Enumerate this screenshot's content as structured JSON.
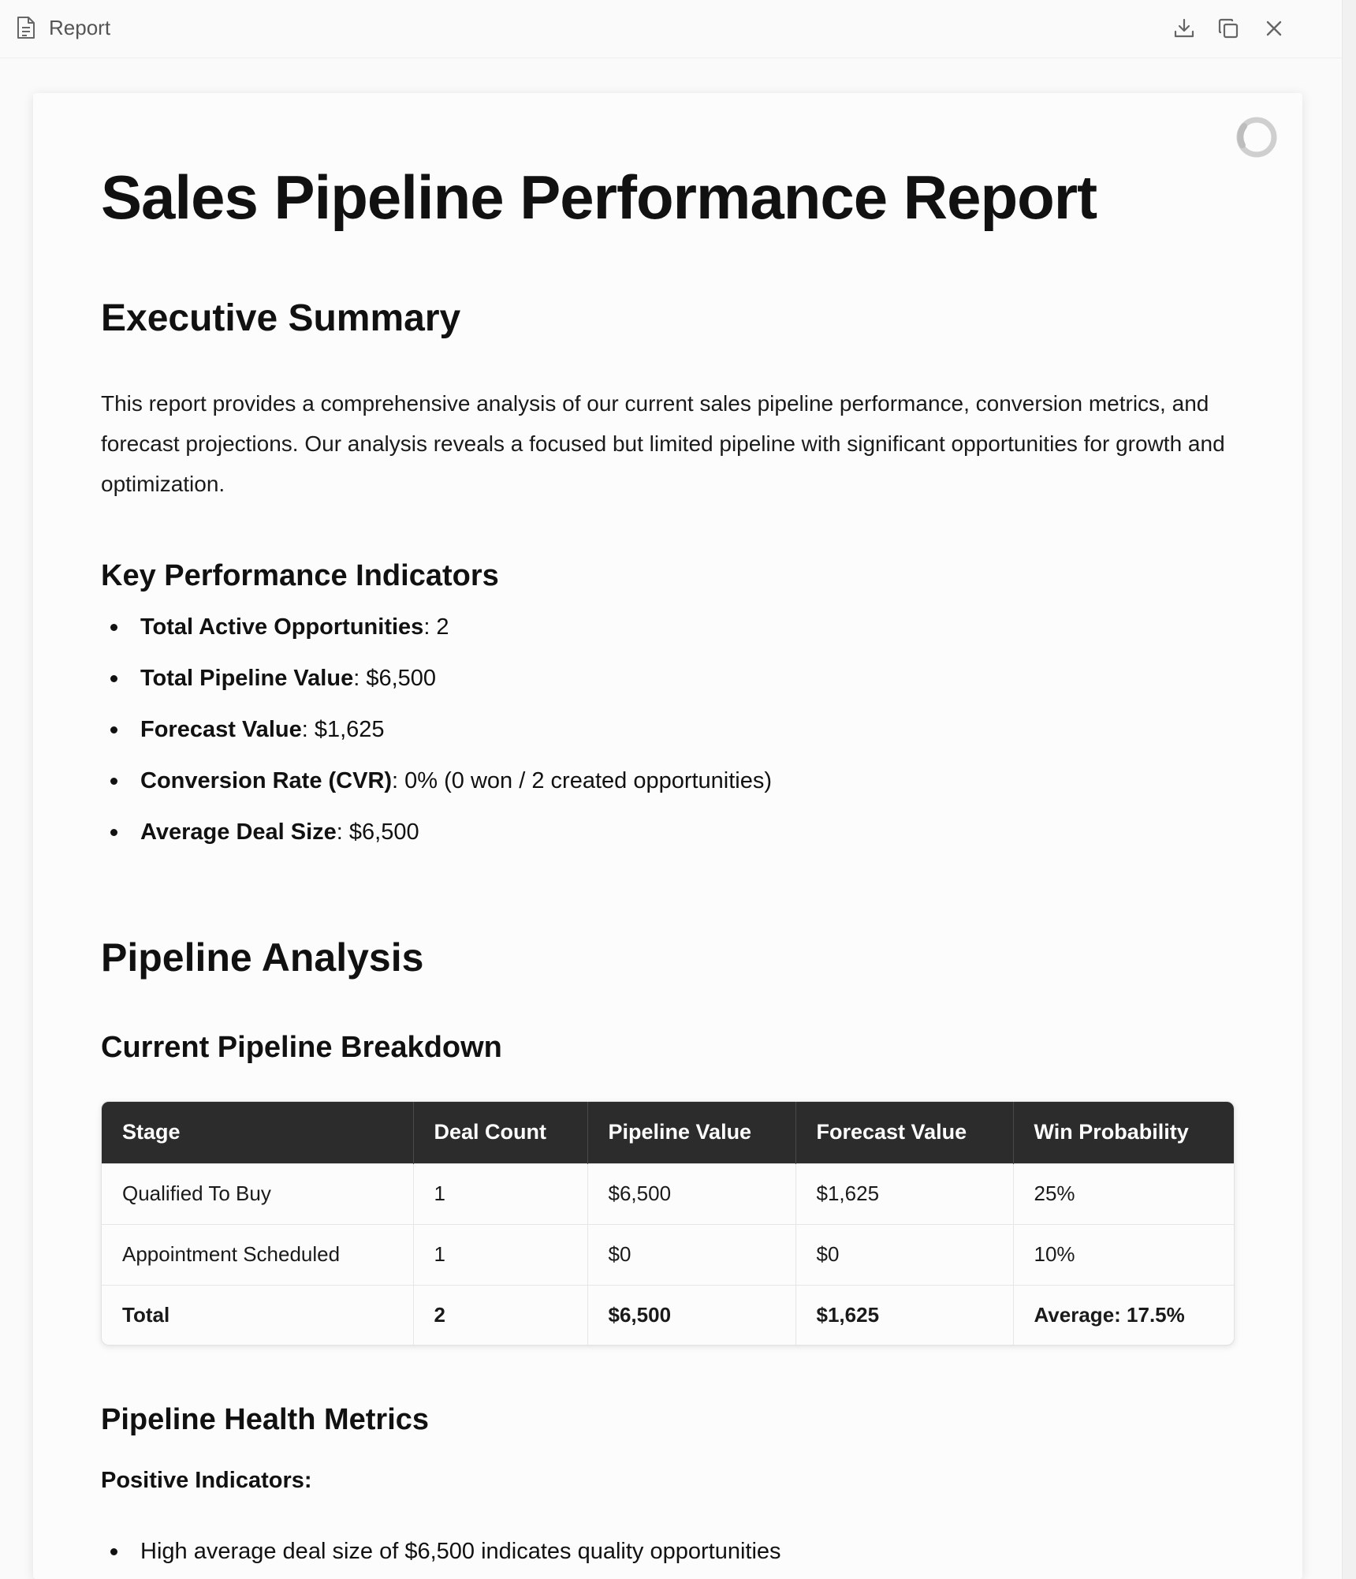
{
  "window": {
    "title": "Report",
    "icons": [
      "document-icon",
      "download-icon",
      "copy-icon",
      "close-icon",
      "loading-spinner-icon"
    ]
  },
  "report": {
    "title": "Sales Pipeline Performance Report",
    "executive_summary": {
      "heading": "Executive Summary",
      "paragraph": "This report provides a comprehensive analysis of our current sales pipeline performance, conversion metrics, and forecast projections. Our analysis reveals a focused but limited pipeline with significant opportunities for growth and optimization."
    },
    "kpis": {
      "heading": "Key Performance Indicators",
      "items": [
        {
          "label": "Total Active Opportunities",
          "value": ": 2"
        },
        {
          "label": "Total Pipeline Value",
          "value": ": $6,500"
        },
        {
          "label": "Forecast Value",
          "value": ": $1,625"
        },
        {
          "label": "Conversion Rate (CVR)",
          "value": ": 0% (0 won / 2 created opportunities)"
        },
        {
          "label": "Average Deal Size",
          "value": ": $6,500"
        }
      ]
    },
    "pipeline_analysis": {
      "heading": "Pipeline Analysis",
      "breakdown_heading": "Current Pipeline Breakdown",
      "table": {
        "headers": [
          "Stage",
          "Deal Count",
          "Pipeline Value",
          "Forecast Value",
          "Win Probability"
        ],
        "rows": [
          [
            "Qualified To Buy",
            "1",
            "$6,500",
            "$1,625",
            "25%"
          ],
          [
            "Appointment Scheduled",
            "1",
            "$0",
            "$0",
            "10%"
          ]
        ],
        "total": [
          "Total",
          "2",
          "$6,500",
          "$1,625",
          "Average: 17.5%"
        ]
      }
    },
    "health_metrics": {
      "heading": "Pipeline Health Metrics",
      "positive_label": "Positive Indicators:",
      "positive_items": [
        "High average deal size of $6,500 indicates quality opportunities"
      ]
    }
  }
}
